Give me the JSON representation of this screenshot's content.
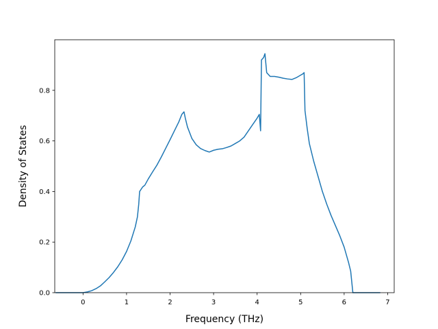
{
  "chart_data": {
    "type": "line",
    "title": "",
    "xlabel": "Frequency (THz)",
    "ylabel": "Density of States",
    "xlim": [
      -0.65,
      7.15
    ],
    "ylim": [
      0.0,
      1.0
    ],
    "xticks": [
      0,
      1,
      2,
      3,
      4,
      5,
      6,
      7
    ],
    "xtick_labels": [
      "0",
      "1",
      "2",
      "3",
      "4",
      "5",
      "6",
      "7"
    ],
    "yticks": [
      0.0,
      0.2,
      0.4,
      0.6,
      0.8
    ],
    "ytick_labels": [
      "0.0",
      "0.2",
      "0.4",
      "0.6",
      "0.8"
    ],
    "grid": false,
    "legend": "none",
    "series": [
      {
        "color": "#1f77b4",
        "x": [
          -0.63,
          0.0,
          0.1,
          0.2,
          0.3,
          0.4,
          0.5,
          0.6,
          0.7,
          0.8,
          0.9,
          1.0,
          1.1,
          1.2,
          1.25,
          1.28,
          1.3,
          1.37,
          1.42,
          1.5,
          1.6,
          1.7,
          1.8,
          1.9,
          2.0,
          2.1,
          2.2,
          2.27,
          2.32,
          2.35,
          2.4,
          2.5,
          2.6,
          2.7,
          2.8,
          2.9,
          2.93,
          3.0,
          3.1,
          3.2,
          3.3,
          3.4,
          3.5,
          3.6,
          3.7,
          3.8,
          3.9,
          4.0,
          4.05,
          4.08,
          4.1,
          4.15,
          4.18,
          4.22,
          4.3,
          4.4,
          4.5,
          4.6,
          4.7,
          4.8,
          4.9,
          5.0,
          5.05,
          5.08,
          5.1,
          5.15,
          5.2,
          5.3,
          5.4,
          5.5,
          5.6,
          5.7,
          5.8,
          5.9,
          6.0,
          6.1,
          6.15,
          6.2,
          6.3,
          6.5,
          6.83
        ],
        "y": [
          0.0,
          0.0,
          0.003,
          0.008,
          0.016,
          0.027,
          0.043,
          0.06,
          0.08,
          0.103,
          0.13,
          0.163,
          0.205,
          0.26,
          0.3,
          0.35,
          0.4,
          0.418,
          0.425,
          0.45,
          0.478,
          0.505,
          0.537,
          0.571,
          0.605,
          0.64,
          0.675,
          0.705,
          0.715,
          0.69,
          0.655,
          0.61,
          0.585,
          0.57,
          0.562,
          0.556,
          0.558,
          0.563,
          0.567,
          0.569,
          0.574,
          0.58,
          0.59,
          0.6,
          0.615,
          0.64,
          0.665,
          0.69,
          0.705,
          0.64,
          0.92,
          0.93,
          0.945,
          0.87,
          0.855,
          0.855,
          0.852,
          0.848,
          0.845,
          0.843,
          0.85,
          0.86,
          0.865,
          0.87,
          0.72,
          0.65,
          0.59,
          0.52,
          0.46,
          0.4,
          0.35,
          0.305,
          0.265,
          0.225,
          0.18,
          0.12,
          0.085,
          0.0,
          0.0,
          0.0,
          0.0
        ]
      }
    ]
  }
}
